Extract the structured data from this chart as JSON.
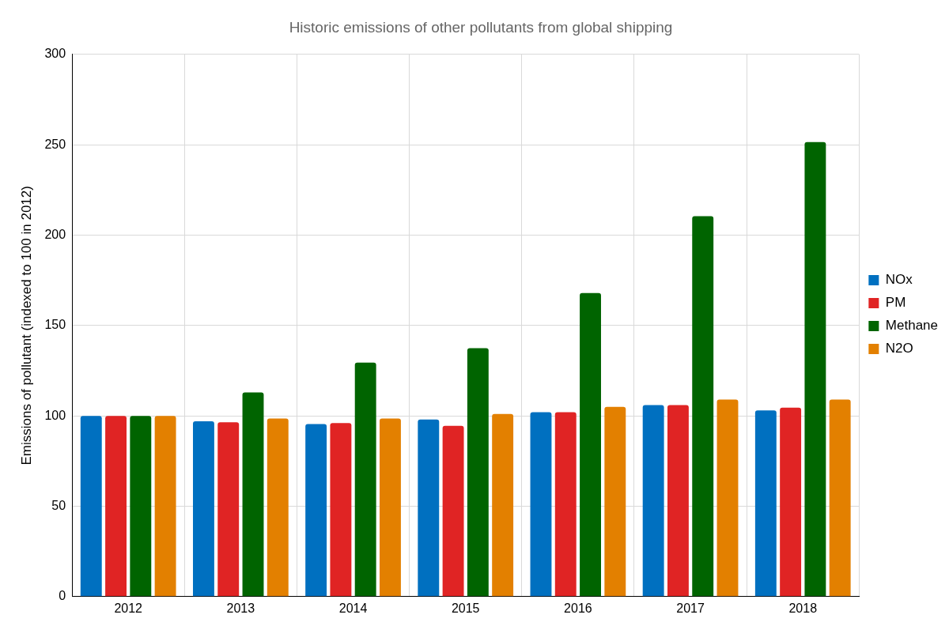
{
  "chart_data": {
    "type": "bar",
    "title": "Historic emissions of other pollutants from global shipping",
    "ylabel": "Emissions of pollutant (indexed to 100 in 2012)",
    "categories": [
      "2012",
      "2013",
      "2014",
      "2015",
      "2016",
      "2017",
      "2018"
    ],
    "series": [
      {
        "name": "NOx",
        "color": "#0070c0",
        "values": [
          100,
          97,
          95.5,
          98,
          102,
          106,
          103
        ]
      },
      {
        "name": "PM",
        "color": "#e02424",
        "values": [
          100,
          96.5,
          96,
          94.5,
          102,
          106,
          104.5
        ]
      },
      {
        "name": "Methane",
        "color": "#006400",
        "values": [
          100,
          113,
          129.5,
          137.5,
          168,
          210.5,
          251.5
        ]
      },
      {
        "name": "N2O",
        "color": "#e38000",
        "values": [
          100,
          98.5,
          98.5,
          101,
          105,
          109,
          109
        ]
      }
    ],
    "ylim": [
      0,
      300
    ],
    "yticks": [
      0,
      50,
      100,
      150,
      200,
      250,
      300
    ],
    "grid": true,
    "legend": "right"
  }
}
